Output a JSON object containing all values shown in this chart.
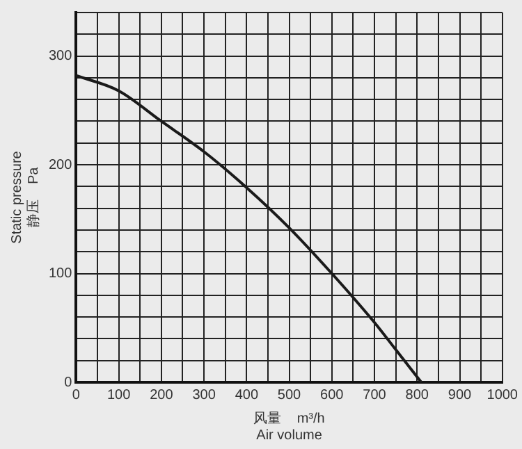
{
  "chart_data": {
    "type": "line",
    "xlabel": "风量    m³/h\nAir volume",
    "ylabel": "Static pressure\n静压    Pa",
    "series": [
      {
        "color": "#1a1a1a",
        "x": [
          0,
          100,
          200,
          300,
          400,
          500,
          600,
          700,
          750,
          810
        ],
        "values": [
          282,
          268,
          240,
          212,
          179,
          142,
          100,
          55,
          30,
          0
        ]
      }
    ],
    "xlim": [
      0,
      1000
    ],
    "ylim": [
      0,
      340
    ],
    "xticks": [
      0,
      {
        "value": 50,
        "label": null
      },
      100,
      {
        "value": 150,
        "label": null
      },
      200,
      {
        "value": 250,
        "label": null
      },
      300,
      {
        "value": 350,
        "label": null
      },
      400,
      {
        "value": 450,
        "label": null
      },
      500,
      {
        "value": 550,
        "label": null
      },
      600,
      {
        "value": 650,
        "label": null
      },
      700,
      {
        "value": 750,
        "label": null
      },
      800,
      {
        "value": 850,
        "label": null
      },
      900,
      {
        "value": 950,
        "label": null
      },
      1000
    ],
    "yticks": [
      0,
      {
        "value": 20,
        "label": null
      },
      {
        "value": 40,
        "label": null
      },
      {
        "value": 60,
        "label": null
      },
      {
        "value": 80,
        "label": null
      },
      100,
      {
        "value": 120,
        "label": null
      },
      {
        "value": 140,
        "label": null
      },
      {
        "value": 160,
        "label": null
      },
      {
        "value": 180,
        "label": null
      },
      200,
      {
        "value": 220,
        "label": null
      },
      {
        "value": 240,
        "label": null
      },
      {
        "value": 260,
        "label": null
      },
      {
        "value": 280,
        "label": null
      },
      300,
      {
        "value": 320,
        "label": null
      },
      {
        "value": 340,
        "label": null
      }
    ],
    "grid": true,
    "legend": false,
    "marker": "none",
    "line_style": "solid"
  }
}
